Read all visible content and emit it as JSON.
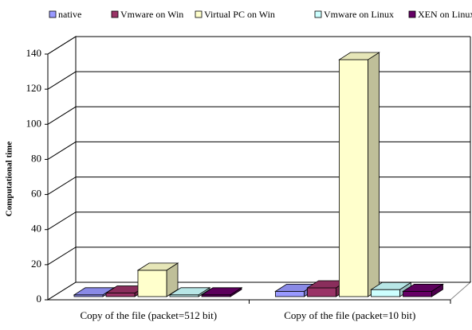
{
  "chart_data": {
    "type": "bar3d",
    "y_label": "Computational time",
    "categories": [
      "Copy of the file (packet=512 bit)",
      "Copy of the file (packet=10 bit)"
    ],
    "series": [
      {
        "name": "native",
        "color": "#9999ff",
        "values": [
          1,
          3
        ]
      },
      {
        "name": "Vmware on Win",
        "color": "#993366",
        "values": [
          2,
          5
        ]
      },
      {
        "name": "Virtual PC on Win",
        "color": "#ffffcc",
        "values": [
          15,
          135
        ]
      },
      {
        "name": "Vmware on Linux",
        "color": "#ccffff",
        "values": [
          1,
          4
        ]
      },
      {
        "name": "XEN on Linux",
        "color": "#660066",
        "values": [
          1,
          3
        ]
      }
    ],
    "ylim": [
      0,
      140
    ],
    "yticks": [
      0,
      20,
      40,
      60,
      80,
      100,
      120,
      140
    ],
    "grid": true,
    "legend": "top"
  }
}
